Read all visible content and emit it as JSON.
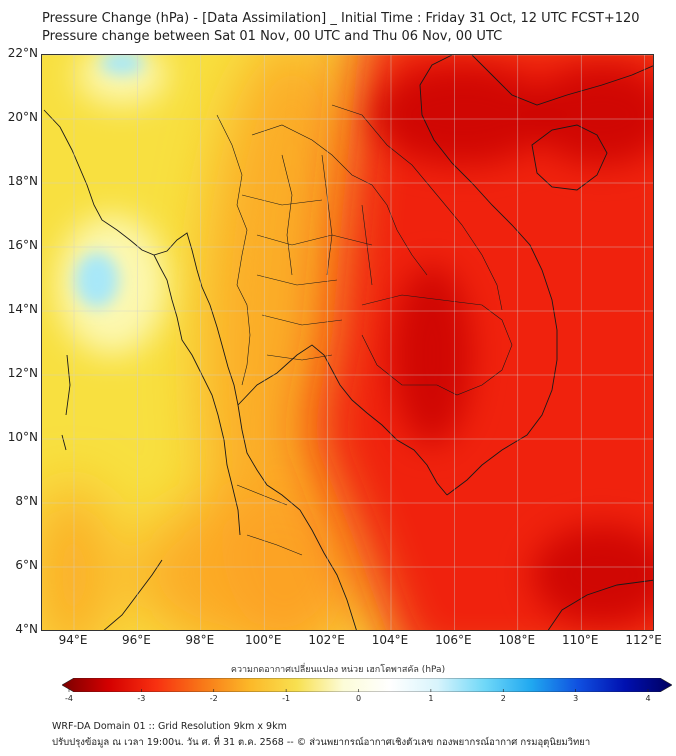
{
  "title": {
    "line1": "Pressure Change (hPa) - [Data Assimilation] _ Initial Time : Friday 31 Oct, 12 UTC FCST+120",
    "line2": "Pressure change between Sat 01 Nov, 00 UTC and Thu 06 Nov, 00 UTC"
  },
  "map": {
    "lat_ticks": [
      "22°N",
      "20°N",
      "18°N",
      "16°N",
      "14°N",
      "12°N",
      "10°N",
      "8°N",
      "6°N",
      "4°N"
    ],
    "lon_ticks": [
      "94°E",
      "96°E",
      "98°E",
      "100°E",
      "102°E",
      "104°E",
      "106°E",
      "108°E",
      "110°E",
      "112°E"
    ],
    "colors": {
      "dark_red": "#c80000",
      "red": "#f02008",
      "orange_red": "#f85010",
      "orange": "#fca020",
      "yellow_orange": "#fcc830",
      "yellow": "#f8e040",
      "pale_yellow": "#fcf8b0",
      "white": "#ffffff",
      "light_blue": "#a8e8f8"
    }
  },
  "colorbar": {
    "caption": "ความกดอากาศเปลี่ยนแปลง หน่วย เฮกโตพาสคัล (hPa)",
    "ticks": [
      "-4",
      "-3",
      "-2",
      "-1",
      "0",
      "1",
      "2",
      "3",
      "4"
    ],
    "stops": [
      "#7a0000",
      "#d40000",
      "#f83010",
      "#f87818",
      "#fcb828",
      "#f8e050",
      "#fcfcd8",
      "#ffffff",
      "#d8f4fc",
      "#70d8f8",
      "#20a8f0",
      "#1050e0",
      "#0010b0",
      "#000060"
    ]
  },
  "footer": {
    "line1": "WRF-DA Domain 01 :: Grid Resolution 9km x 9km",
    "line2": "ปรับปรุงข้อมูล ณ เวลา 19:00น. วัน ศ. ที่ 31 ต.ค. 2568 -- © ส่วนพยากรณ์อากาศเชิงตัวเลข กองพยากรณ์อากาศ กรมอุตุนิยมวิทยา"
  }
}
